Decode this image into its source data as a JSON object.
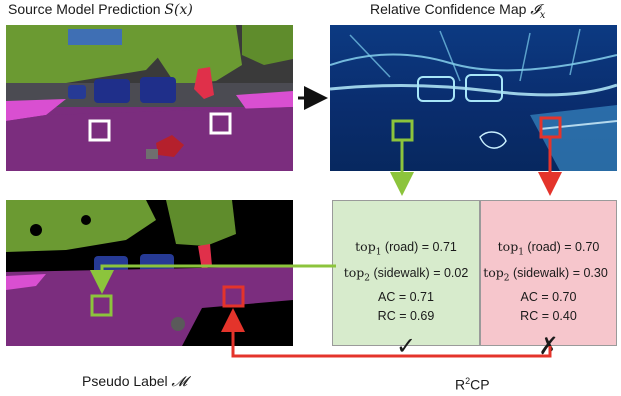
{
  "titles": {
    "source_prefix": "Source Model Prediction ",
    "source_math": "S(x)",
    "confidence_prefix": "Relative Confidence Map ",
    "confidence_math": "𝓘",
    "confidence_sub": "x",
    "pseudo_prefix": "Pseudo Label ",
    "pseudo_math": "𝓜",
    "r2cp_prefix": "R",
    "r2cp_sup": "2",
    "r2cp_suffix": "CP"
  },
  "left_card": {
    "top1_math": "top",
    "top1_sub": "1",
    "top1_rest": " (road) = 0.71",
    "top2_math": "top",
    "top2_sub": "2",
    "top2_rest": " (sidewalk) = 0.02",
    "ac": "AC = 0.71",
    "rc": "RC = 0.69",
    "verdict_icon": "check-icon",
    "verdict": "✓",
    "bg": "#d7ebcc"
  },
  "right_card": {
    "top1_math": "top",
    "top1_sub": "1",
    "top1_rest": " (road) = 0.70",
    "top2_math": "top",
    "top2_sub": "2",
    "top2_rest": " (sidewalk) = 0.30",
    "ac": "AC = 0.70",
    "rc": "RC = 0.40",
    "verdict_icon": "cross-icon",
    "verdict": "✗",
    "bg": "#f6c6cc"
  },
  "colors": {
    "green": "#8cc43c",
    "red": "#e4342b",
    "road": "#7b2d7e",
    "sidewalk": "#d94fd1",
    "vegetation": "#6b9a32",
    "sky": "#3f6fb4",
    "car": "#1f2f8a",
    "map_dark": "#0a2d6e",
    "map_light": "#8fdcf5"
  }
}
